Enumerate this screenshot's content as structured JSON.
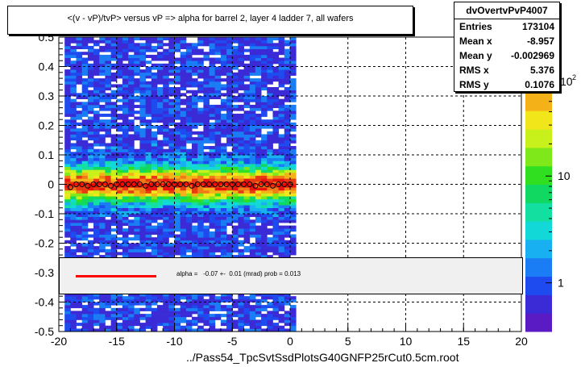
{
  "title": "<(v - vP)/tvP> versus   vP => alpha for barrel 2, layer 4 ladder 7, all wafers",
  "stats": {
    "name": "dvOvertvPvP4007",
    "rows": [
      {
        "key": "Entries",
        "value": "173104"
      },
      {
        "key": "Mean x",
        "value": "-8.957"
      },
      {
        "key": "Mean y",
        "value": "-0.002969"
      },
      {
        "key": "RMS x",
        "value": "5.376"
      },
      {
        "key": "RMS y",
        "value": "0.1076"
      }
    ]
  },
  "fit_legend": "alpha =   -0.07 +-  0.01 (mrad) prob = 0.013",
  "xlabel": "../Pass54_TpcSvtSsdPlotsG40GNFP25rCut0.5cm.root",
  "colorbar": {
    "tick_labels": [
      "1",
      "10"
    ],
    "exponent_label": "10",
    "exponent_superscript": "2",
    "log_scale": true
  },
  "chart_data": {
    "type": "heatmap",
    "title": "<(v - vP)/tvP> versus   vP => alpha for barrel 2, layer 4 ladder 7, all wafers",
    "xlabel": "../Pass54_TpcSvtSsdPlotsG40GNFP25rCut0.5cm.root",
    "ylabel": "",
    "xlim": [
      -20,
      20
    ],
    "ylim": [
      -0.5,
      0.5
    ],
    "x_ticks": [
      -20,
      -15,
      -10,
      -5,
      0,
      5,
      10,
      15,
      20
    ],
    "y_ticks": [
      -0.5,
      -0.4,
      -0.3,
      -0.2,
      -0.1,
      0,
      0.1,
      0.2,
      0.3,
      0.4,
      0.5
    ],
    "x_tick_labels": [
      "-20",
      "-15",
      "-10",
      "-5",
      "0",
      "5",
      "10",
      "15",
      "20"
    ],
    "y_tick_labels": [
      "-0.5",
      "-0.4",
      "-0.3",
      "-0.2",
      "-0.1",
      "0",
      "0.1",
      "0.2",
      "0.3",
      "0.4",
      "0.5"
    ],
    "grid": true,
    "z_scale": "log",
    "occupied_x_range": [
      -19.5,
      0.3
    ],
    "profile": {
      "x": [
        -19,
        -18.5,
        -18,
        -17.5,
        -17,
        -16.5,
        -16,
        -15.5,
        -15,
        -14.5,
        -14,
        -13.5,
        -13,
        -12.5,
        -12,
        -11.5,
        -11,
        -10.5,
        -10,
        -9.5,
        -9,
        -8.5,
        -8,
        -7.5,
        -7,
        -6.5,
        -6,
        -5.5,
        -5,
        -4.5,
        -4,
        -3.5,
        -3,
        -2.5,
        -2,
        -1.5,
        -1,
        -0.5,
        0
      ],
      "y": [
        -0.01,
        0.0,
        0.0,
        -0.005,
        0.0,
        0.0,
        0.0,
        -0.005,
        0.0,
        0.0,
        0.0,
        0.0,
        0.0,
        -0.005,
        0.0,
        0.0,
        0.0,
        0.0,
        0.0,
        0.0,
        0.0,
        -0.005,
        0.0,
        0.0,
        0.0,
        0.0,
        0.0,
        0.0,
        0.0,
        0.0,
        0.0,
        0.0,
        -0.005,
        0.0,
        0.0,
        -0.005,
        0.0,
        0.0,
        0.0
      ]
    },
    "fit_line": {
      "slope_mrad": -0.07,
      "intercept": 0.0
    }
  }
}
